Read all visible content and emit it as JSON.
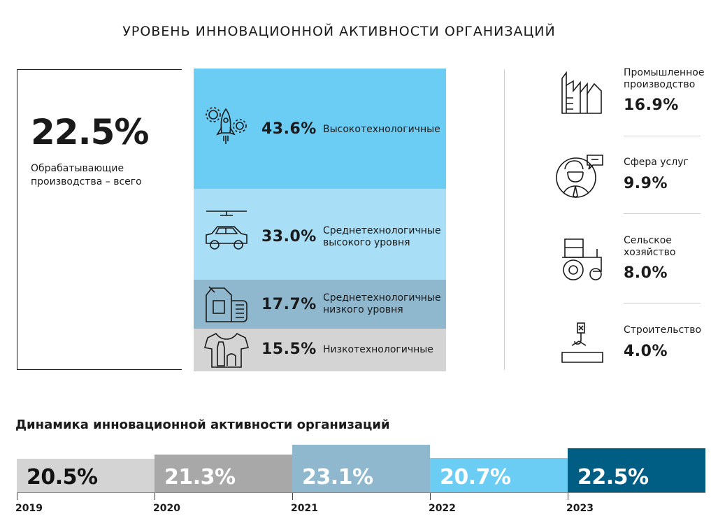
{
  "title": "УРОВЕНЬ ИННОВАЦИОННОЙ АКТИВНОСТИ ОРГАНИЗАЦИЙ",
  "total": {
    "value": "22.5%",
    "label": "Обрабатывающие производства – всего"
  },
  "manufacturing_segments": [
    {
      "value": "43.6%",
      "label": "Высокотехнологичные",
      "color": "#6ccdf4",
      "icon": "rocket-gears-icon"
    },
    {
      "value": "33.0%",
      "label": "Среднетехнологичные высокого уровня",
      "color": "#a9dff6",
      "icon": "car-icon"
    },
    {
      "value": "17.7%",
      "label": "Среднетехнологичные низкого уровня",
      "color": "#8fb8cf",
      "icon": "canister-icon"
    },
    {
      "value": "15.5%",
      "label": "Низкотехнологичные",
      "color": "#d4d4d4",
      "icon": "tshirt-bottle-icon"
    }
  ],
  "industries": [
    {
      "label": "Промышленное производство",
      "value": "16.9%",
      "icon": "factory-icon"
    },
    {
      "label": "Сфера услуг",
      "value": "9.9%",
      "icon": "service-person-icon"
    },
    {
      "label": "Сельское хозяйство",
      "value": "8.0%",
      "icon": "tractor-icon"
    },
    {
      "label": "Строительство",
      "value": "4.0%",
      "icon": "crane-hook-icon"
    }
  ],
  "chart_data": {
    "type": "bar",
    "title": "Динамика инновационной активности организаций",
    "categories": [
      "2019",
      "2020",
      "2021",
      "2022",
      "2023"
    ],
    "values": [
      20.5,
      21.3,
      23.1,
      20.7,
      22.5
    ],
    "value_labels": [
      "20.5%",
      "21.3%",
      "23.1%",
      "20.7%",
      "22.5%"
    ],
    "colors": [
      "#d4d4d4",
      "#a8a8a8",
      "#8fb8cf",
      "#6ccdf4",
      "#005d83"
    ],
    "value_label_colors": [
      "#111111",
      "#ffffff",
      "#ffffff",
      "#ffffff",
      "#ffffff"
    ],
    "grid": false
  }
}
